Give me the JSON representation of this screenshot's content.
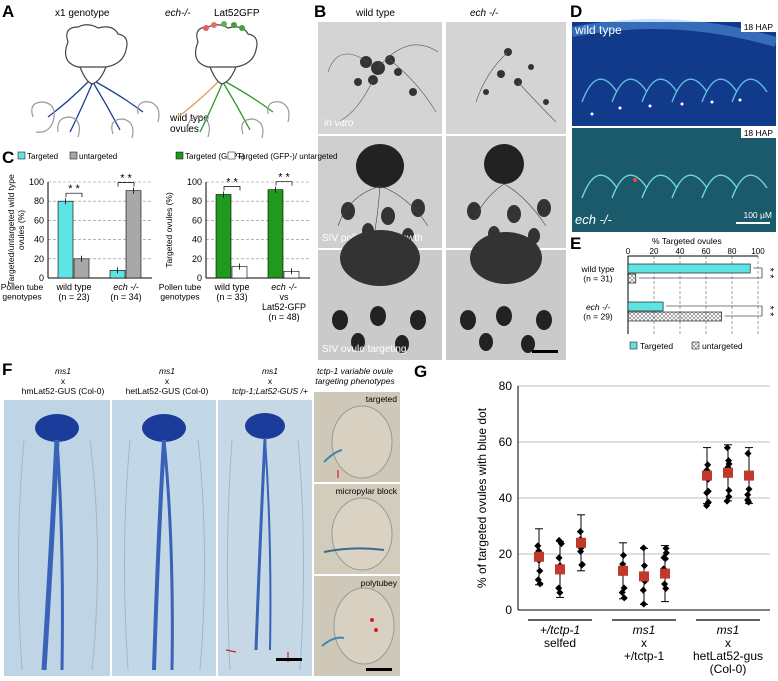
{
  "panelA": {
    "letter": "A",
    "x1_label": "x1 genotype",
    "ech_label": "ech-/-",
    "lat_label": "Lat52GFP",
    "wt_ovules_label": "wild type\novules"
  },
  "panelB": {
    "letter": "B",
    "col_wt": "wild type",
    "col_ech": "ech -/-",
    "row1": "in vitro",
    "row2": "SIV pollen tube growth",
    "row3": "SIV ovule targeting"
  },
  "panelC": {
    "letter": "C",
    "legend1": [
      "Targeted",
      "untargeted"
    ],
    "legend2": [
      "Targeted (GFP+)",
      "Targeted (GFP-)/ untargeted"
    ],
    "ylabel1": "Targeted/untargeted wild type ovules (%)",
    "ylabel2": "Targeted ovules (%)",
    "pt_label": "Pollen tube genotypes",
    "sig": "* *",
    "colors": {
      "targeted": "#5fe3e3",
      "untargeted": "#a8a8a8",
      "gfp": "#1f9a1f",
      "white": "#ffffff"
    }
  },
  "panelD": {
    "letter": "D",
    "wt_label": "wild type",
    "ech_label": "ech -/-",
    "hap1": "18 HAP",
    "hap2": "18 HAP",
    "scale": "100 µM"
  },
  "panelE": {
    "letter": "E",
    "title": "% Targeted ovules",
    "legend": [
      "Targeted",
      "untargeted"
    ],
    "sig": "* *"
  },
  "panelF": {
    "letter": "F",
    "cross1": [
      "ms1",
      "x",
      "hmLat52-GUS (Col-0)"
    ],
    "cross2": [
      "ms1",
      "x",
      "hetLat52-GUS (Col-0)"
    ],
    "cross3": [
      "ms1",
      "x",
      "tctp-1;Lat52-GUS /+"
    ],
    "inset_title": "tctp-1 variable ovule targeting phenotypes",
    "inset1": "targeted",
    "inset2": "micropylar block",
    "inset3": "polytubey"
  },
  "panelG": {
    "letter": "G"
  },
  "chart_data": [
    {
      "type": "bar",
      "categories": [
        "wild type\n(n = 23)",
        "ech -/-\n(n = 34)"
      ],
      "series": [
        {
          "name": "Targeted",
          "values": [
            80,
            8
          ]
        },
        {
          "name": "untargeted",
          "values": [
            20,
            91
          ]
        }
      ],
      "ylabel": "Targeted/untargeted wild type ovules (%)",
      "ylim": [
        0,
        100
      ],
      "yticks": [
        0,
        20,
        40,
        60,
        80,
        100
      ],
      "xtitle": "Pollen tube genotypes"
    },
    {
      "type": "bar",
      "categories": [
        "wild type\n(n = 33)",
        "ech -/-\nvs\nLat52-GFP\n(n = 48)"
      ],
      "series": [
        {
          "name": "Targeted (GFP+)",
          "values": [
            87,
            92
          ]
        },
        {
          "name": "Targeted (GFP-)/ untargeted",
          "values": [
            12,
            7
          ]
        }
      ],
      "ylabel": "Targeted ovules (%)",
      "ylim": [
        0,
        100
      ],
      "yticks": [
        0,
        20,
        40,
        60,
        80,
        100
      ],
      "xtitle": "Pollen tube genotypes"
    },
    {
      "type": "bar",
      "orientation": "horizontal",
      "categories": [
        "wild type\n(n = 31)",
        "ech -/-\n(n = 29)"
      ],
      "series": [
        {
          "name": "Targeted",
          "values": [
            94,
            27
          ]
        },
        {
          "name": "untargeted",
          "values": [
            6,
            72
          ]
        }
      ],
      "xlabel": "% Targeted ovules",
      "xlim": [
        0,
        100
      ],
      "xticks": [
        0,
        20,
        40,
        60,
        80,
        100
      ]
    },
    {
      "type": "scatter",
      "ylabel": "% of targeted ovules with blue dot",
      "ylim": [
        0,
        80
      ],
      "yticks": [
        0,
        20,
        40,
        60,
        80
      ],
      "groups": [
        {
          "label": [
            "+/tctp-1",
            "selfed"
          ],
          "means": [
            19,
            14.5,
            24
          ]
        },
        {
          "label": [
            "ms1",
            "x",
            "+/tctp-1"
          ],
          "means": [
            14,
            12,
            13
          ]
        },
        {
          "label": [
            "ms1",
            "x",
            "hetLat52-gus",
            "(Col-0)"
          ],
          "means": [
            48,
            49,
            48
          ]
        }
      ],
      "grid": true
    }
  ]
}
